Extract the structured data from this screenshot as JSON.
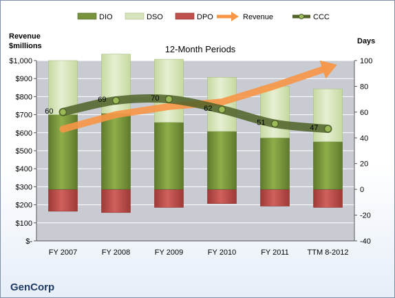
{
  "chart_data": {
    "type": "bar",
    "title": "12-Month Periods",
    "company": "GenCorp",
    "categories": [
      "FY 2007",
      "FY 2008",
      "FY 2009",
      "FY 2010",
      "FY 2011",
      "TTM 8-2012"
    ],
    "y_left": {
      "label_line1": "Revenue",
      "label_line2": "$millions",
      "ylim": [
        0,
        1000
      ],
      "ticks": [
        "$-",
        "$100",
        "$200",
        "$300",
        "$400",
        "$500",
        "$600",
        "$700",
        "$800",
        "$900",
        "$1,000"
      ]
    },
    "y_right": {
      "label": "Days",
      "ylim": [
        -40,
        100
      ],
      "ticks": [
        "-40",
        "-20",
        "0",
        "20",
        "40",
        "60",
        "80",
        "100"
      ]
    },
    "series": [
      {
        "name": "DIO",
        "color": "#77933c",
        "axis": "days",
        "values": [
          58,
          59,
          52,
          45,
          40,
          37
        ]
      },
      {
        "name": "DSO",
        "color": "#d7e4bd",
        "axis": "days",
        "values": [
          42,
          46,
          49,
          42,
          40,
          41
        ]
      },
      {
        "name": "DPO",
        "color": "#c0504d",
        "axis": "days",
        "values": [
          -17,
          -18,
          -14,
          -11,
          -13,
          -14
        ]
      },
      {
        "name": "Revenue",
        "color": "#f79646",
        "axis": "revenue",
        "style": "arrow",
        "values": [
          620,
          700,
          745,
          770,
          860,
          960
        ]
      },
      {
        "name": "CCC",
        "color": "#4f6228",
        "axis": "days",
        "values": [
          60,
          69,
          70,
          62,
          51,
          47
        ]
      }
    ],
    "data_labels": [
      "60",
      "69",
      "70",
      "62",
      "51",
      "47"
    ],
    "grid": true,
    "legend": "top"
  }
}
